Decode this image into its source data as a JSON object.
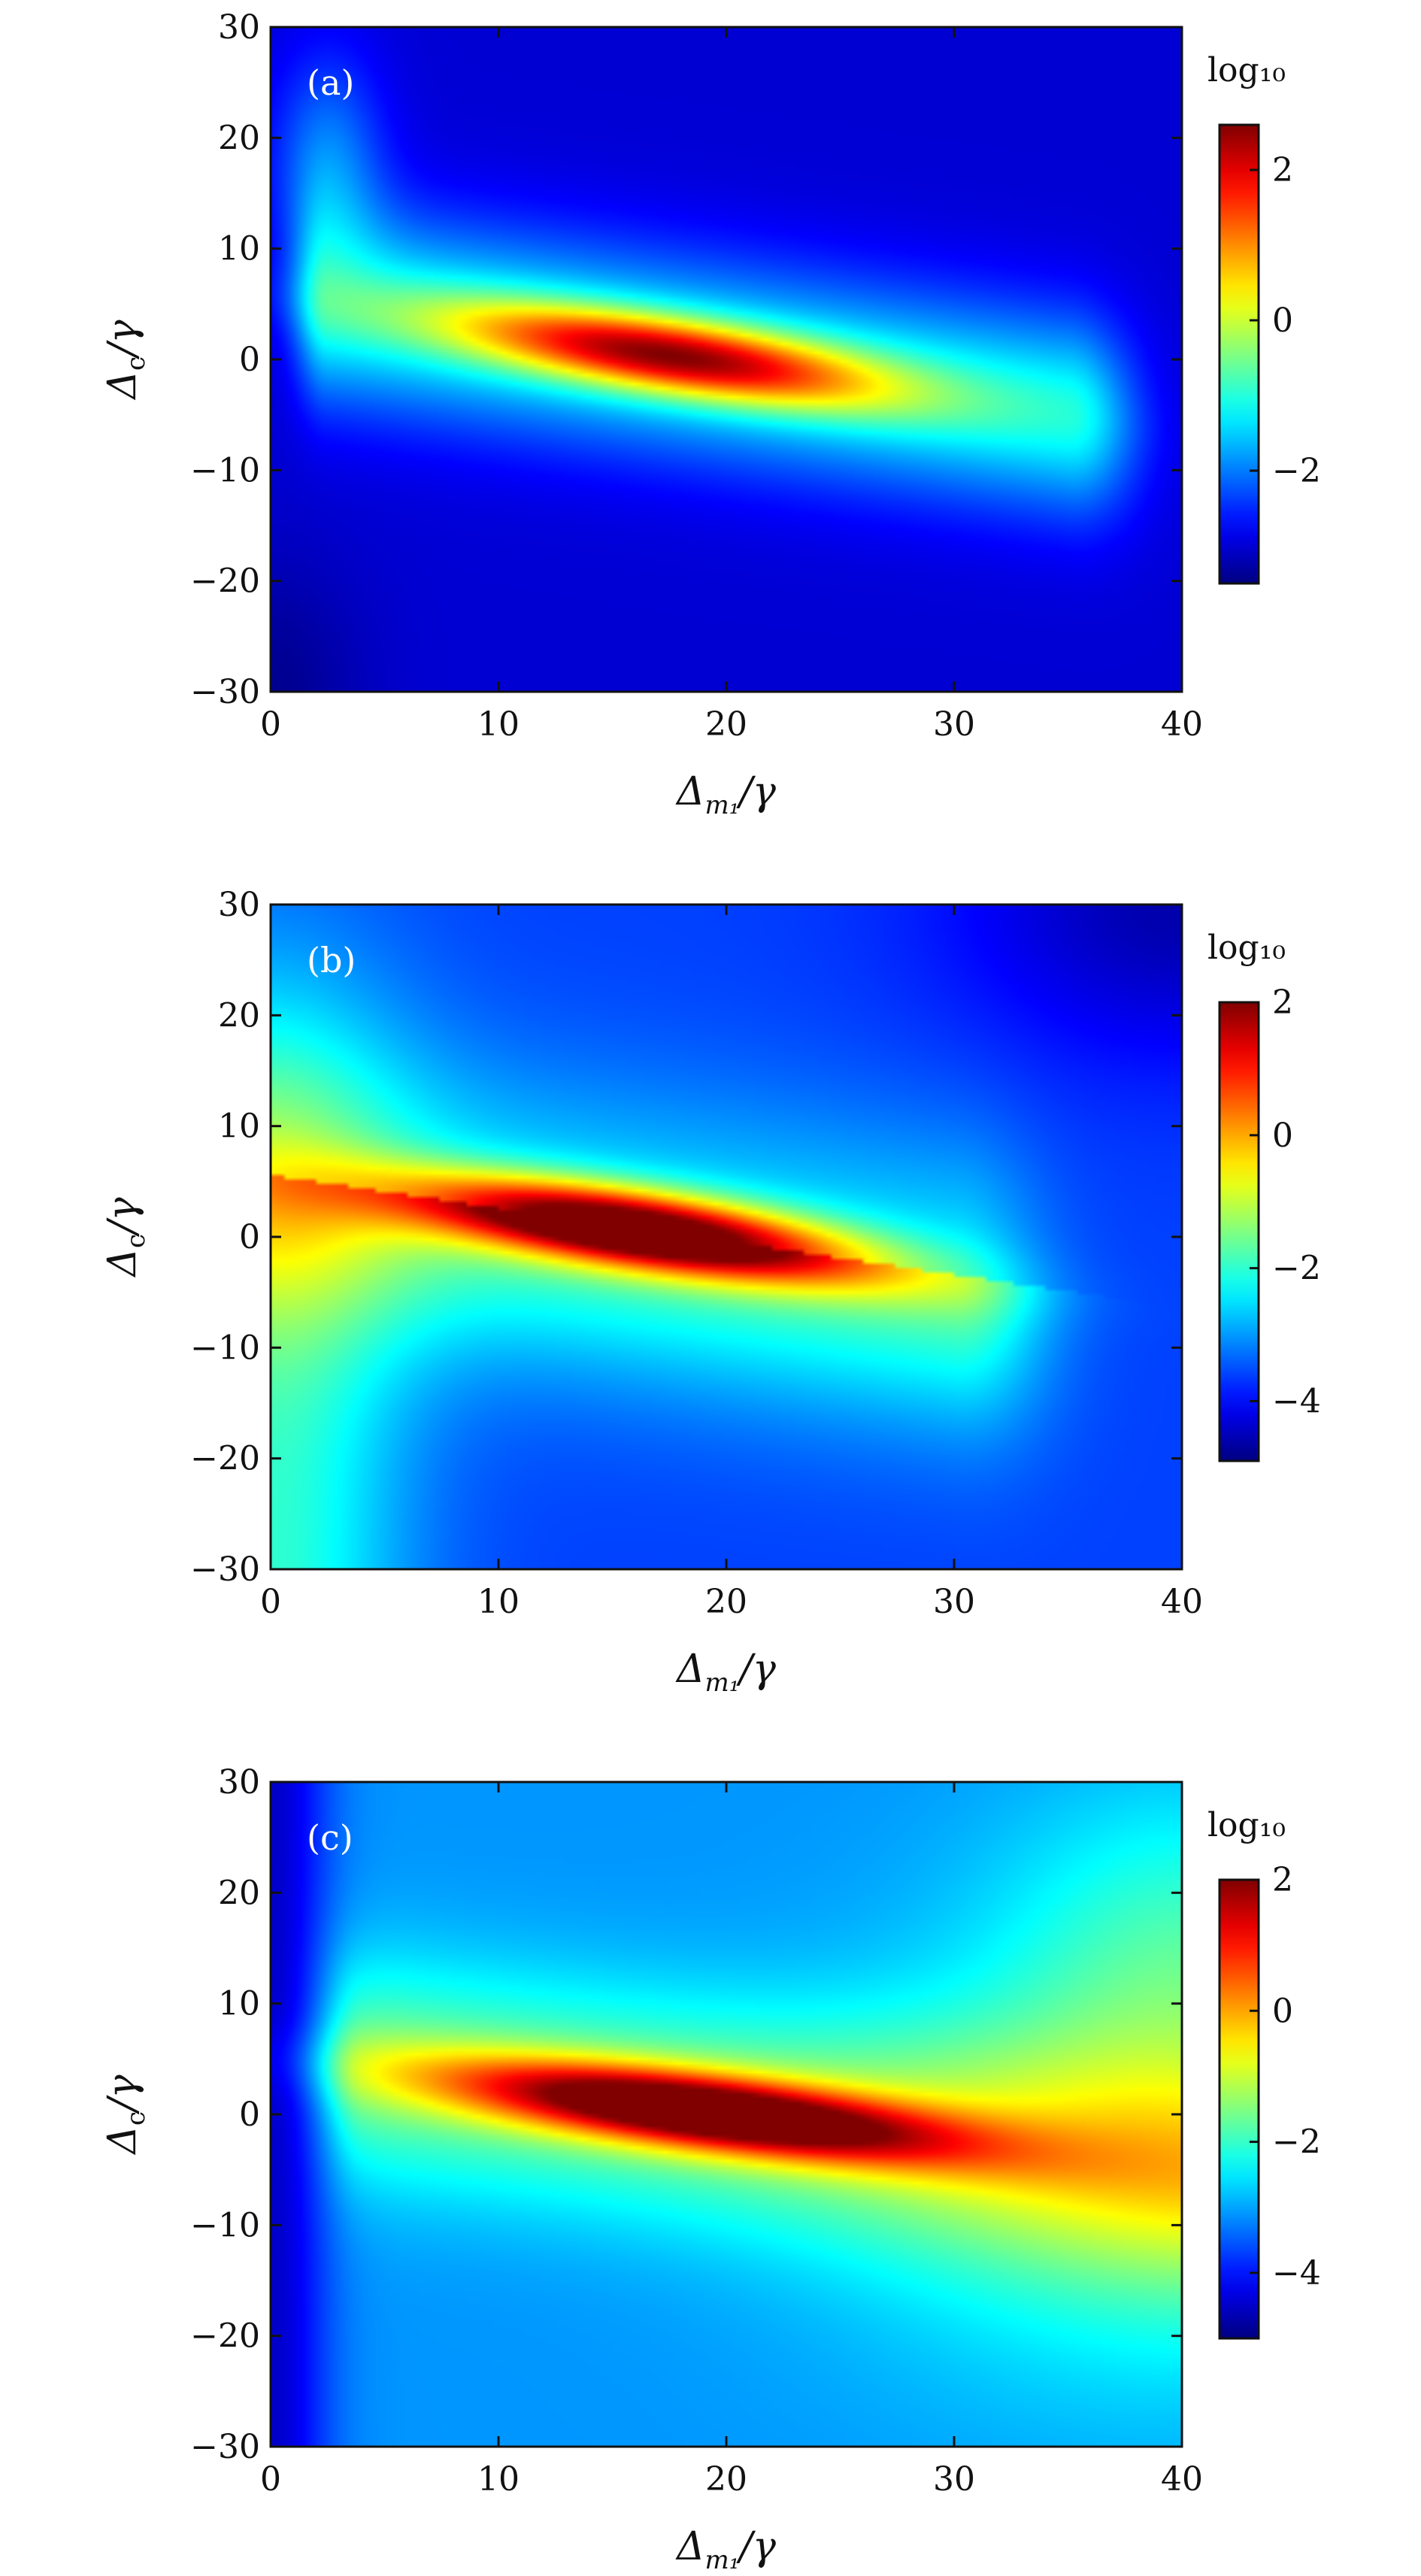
{
  "chart_data": [
    {
      "type": "heatmap",
      "panel_label": "(a)",
      "xlabel_base": "Δ",
      "xlabel_sub": "m₁",
      "xlabel_tail": "/γ",
      "ylabel_base": "Δ",
      "ylabel_sub": "c",
      "ylabel_tail": "/γ",
      "xlim": [
        0,
        40
      ],
      "ylim": [
        -30,
        30
      ],
      "xticks": [
        0,
        10,
        20,
        30,
        40
      ],
      "yticks": [
        -30,
        -20,
        -10,
        0,
        10,
        20,
        30
      ],
      "xtick_labels": [
        "0",
        "10",
        "20",
        "30",
        "40"
      ],
      "ytick_labels": [
        "−30",
        "−20",
        "−10",
        "0",
        "10",
        "20",
        "30"
      ],
      "colorbar": {
        "title": "log₁₀",
        "range": [
          -3.5,
          2.6
        ],
        "ticks": [
          -2,
          0,
          2
        ],
        "tick_labels": [
          "−2",
          "0",
          "2"
        ],
        "colormap": "jet"
      },
      "peak": {
        "x": 17,
        "y": 0.5,
        "value": 2.6
      },
      "ridge": {
        "x_start": 9,
        "x_end": 26,
        "slope": -0.3
      },
      "background_value": -3.0
    },
    {
      "type": "heatmap",
      "panel_label": "(b)",
      "xlabel_base": "Δ",
      "xlabel_sub": "m₁",
      "xlabel_tail": "/γ",
      "ylabel_base": "Δ",
      "ylabel_sub": "c",
      "ylabel_tail": "/γ",
      "xlim": [
        0,
        40
      ],
      "ylim": [
        -30,
        30
      ],
      "xticks": [
        0,
        10,
        20,
        30,
        40
      ],
      "yticks": [
        -30,
        -20,
        -10,
        0,
        10,
        20,
        30
      ],
      "xtick_labels": [
        "0",
        "10",
        "20",
        "30",
        "40"
      ],
      "ytick_labels": [
        "−30",
        "−20",
        "−10",
        "0",
        "10",
        "20",
        "30"
      ],
      "colorbar": {
        "title": "log₁₀",
        "range": [
          -4.9,
          2.0
        ],
        "ticks": [
          -4,
          -2,
          0,
          2
        ],
        "tick_labels": [
          "−4",
          "−2",
          "0",
          "2"
        ],
        "colormap": "jet"
      },
      "peak": {
        "x": 17,
        "y": 0.5,
        "value": 2.0
      },
      "ridge": {
        "x_start": 6,
        "x_end": 25,
        "slope": -0.3
      },
      "background_value": -3.5
    },
    {
      "type": "heatmap",
      "panel_label": "(c)",
      "xlabel_base": "Δ",
      "xlabel_sub": "m₁",
      "xlabel_tail": "/γ",
      "ylabel_base": "Δ",
      "ylabel_sub": "c",
      "ylabel_tail": "/γ",
      "xlim": [
        0,
        40
      ],
      "ylim": [
        -30,
        30
      ],
      "xticks": [
        0,
        10,
        20,
        30,
        40
      ],
      "yticks": [
        -30,
        -20,
        -10,
        0,
        10,
        20,
        30
      ],
      "xtick_labels": [
        "0",
        "10",
        "20",
        "30",
        "40"
      ],
      "ytick_labels": [
        "−30",
        "−20",
        "−10",
        "0",
        "10",
        "20",
        "30"
      ],
      "colorbar": {
        "title": "log₁₀",
        "range": [
          -5.0,
          2.0
        ],
        "ticks": [
          -4,
          -2,
          0,
          2
        ],
        "tick_labels": [
          "−4",
          "−2",
          "0",
          "2"
        ],
        "colormap": "jet"
      },
      "peak": {
        "x": 18,
        "y": 0.5,
        "value": 2.0
      },
      "ridge": {
        "x_start": 9,
        "x_end": 30,
        "slope": -0.25
      },
      "background_value": -3.0
    }
  ]
}
